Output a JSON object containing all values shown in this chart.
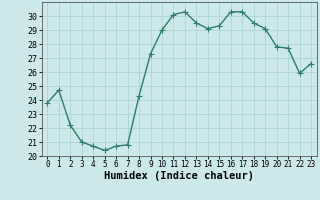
{
  "x": [
    0,
    1,
    2,
    3,
    4,
    5,
    6,
    7,
    8,
    9,
    10,
    11,
    12,
    13,
    14,
    15,
    16,
    17,
    18,
    19,
    20,
    21,
    22,
    23
  ],
  "y": [
    23.8,
    24.7,
    22.2,
    21.0,
    20.7,
    20.4,
    20.7,
    20.8,
    24.3,
    27.3,
    29.0,
    30.1,
    30.3,
    29.5,
    29.1,
    29.3,
    30.3,
    30.3,
    29.5,
    29.1,
    27.8,
    27.7,
    25.9,
    26.6
  ],
  "line_color": "#2e7d6e",
  "marker": "D",
  "marker_size": 2.0,
  "bg_color": "#cce8e8",
  "grid_color": "#aed4d4",
  "xlabel": "Humidex (Indice chaleur)",
  "ylim": [
    20,
    31
  ],
  "xlim": [
    -0.5,
    23.5
  ],
  "yticks": [
    20,
    21,
    22,
    23,
    24,
    25,
    26,
    27,
    28,
    29,
    30
  ],
  "xticks": [
    0,
    1,
    2,
    3,
    4,
    5,
    6,
    7,
    8,
    9,
    10,
    11,
    12,
    13,
    14,
    15,
    16,
    17,
    18,
    19,
    20,
    21,
    22,
    23
  ],
  "tick_labelsize": 5.5,
  "xlabel_fontsize": 7.5,
  "line_width": 1.0
}
